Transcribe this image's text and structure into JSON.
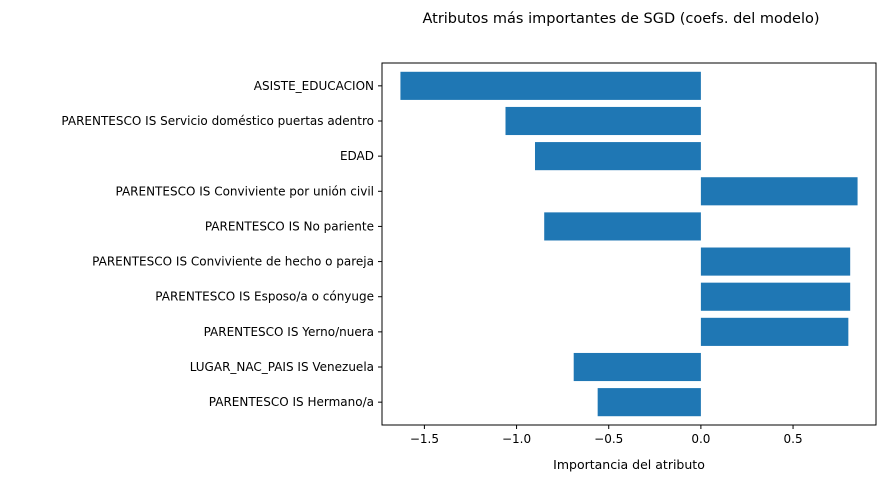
{
  "chart_data": {
    "type": "bar",
    "orientation": "horizontal",
    "title": "Atributos más importantes de SGD (coefs. del modelo)",
    "xlabel": "Importancia del atributo",
    "ylabel": "",
    "xlim": [
      -1.73,
      0.95
    ],
    "xticks": [
      -1.5,
      -1.0,
      -0.5,
      0.0,
      0.5
    ],
    "xtick_labels": [
      "−1.5",
      "−1.0",
      "−0.5",
      "0.0",
      "0.5"
    ],
    "grid": false,
    "bar_color": "#1f77b4",
    "categories": [
      "ASISTE_EDUCACION",
      "PARENTESCO IS Servicio doméstico puertas adentro",
      "EDAD",
      "PARENTESCO IS Conviviente por unión civil",
      "PARENTESCO IS No pariente",
      "PARENTESCO IS Conviviente de hecho o pareja",
      "PARENTESCO IS Esposo/a o cónyuge",
      "PARENTESCO IS Yerno/nuera",
      "LUGAR_NAC_PAIS IS Venezuela",
      "PARENTESCO IS Hermano/a"
    ],
    "values": [
      -1.63,
      -1.06,
      -0.9,
      0.85,
      -0.85,
      0.81,
      0.81,
      0.8,
      -0.69,
      -0.56
    ]
  }
}
